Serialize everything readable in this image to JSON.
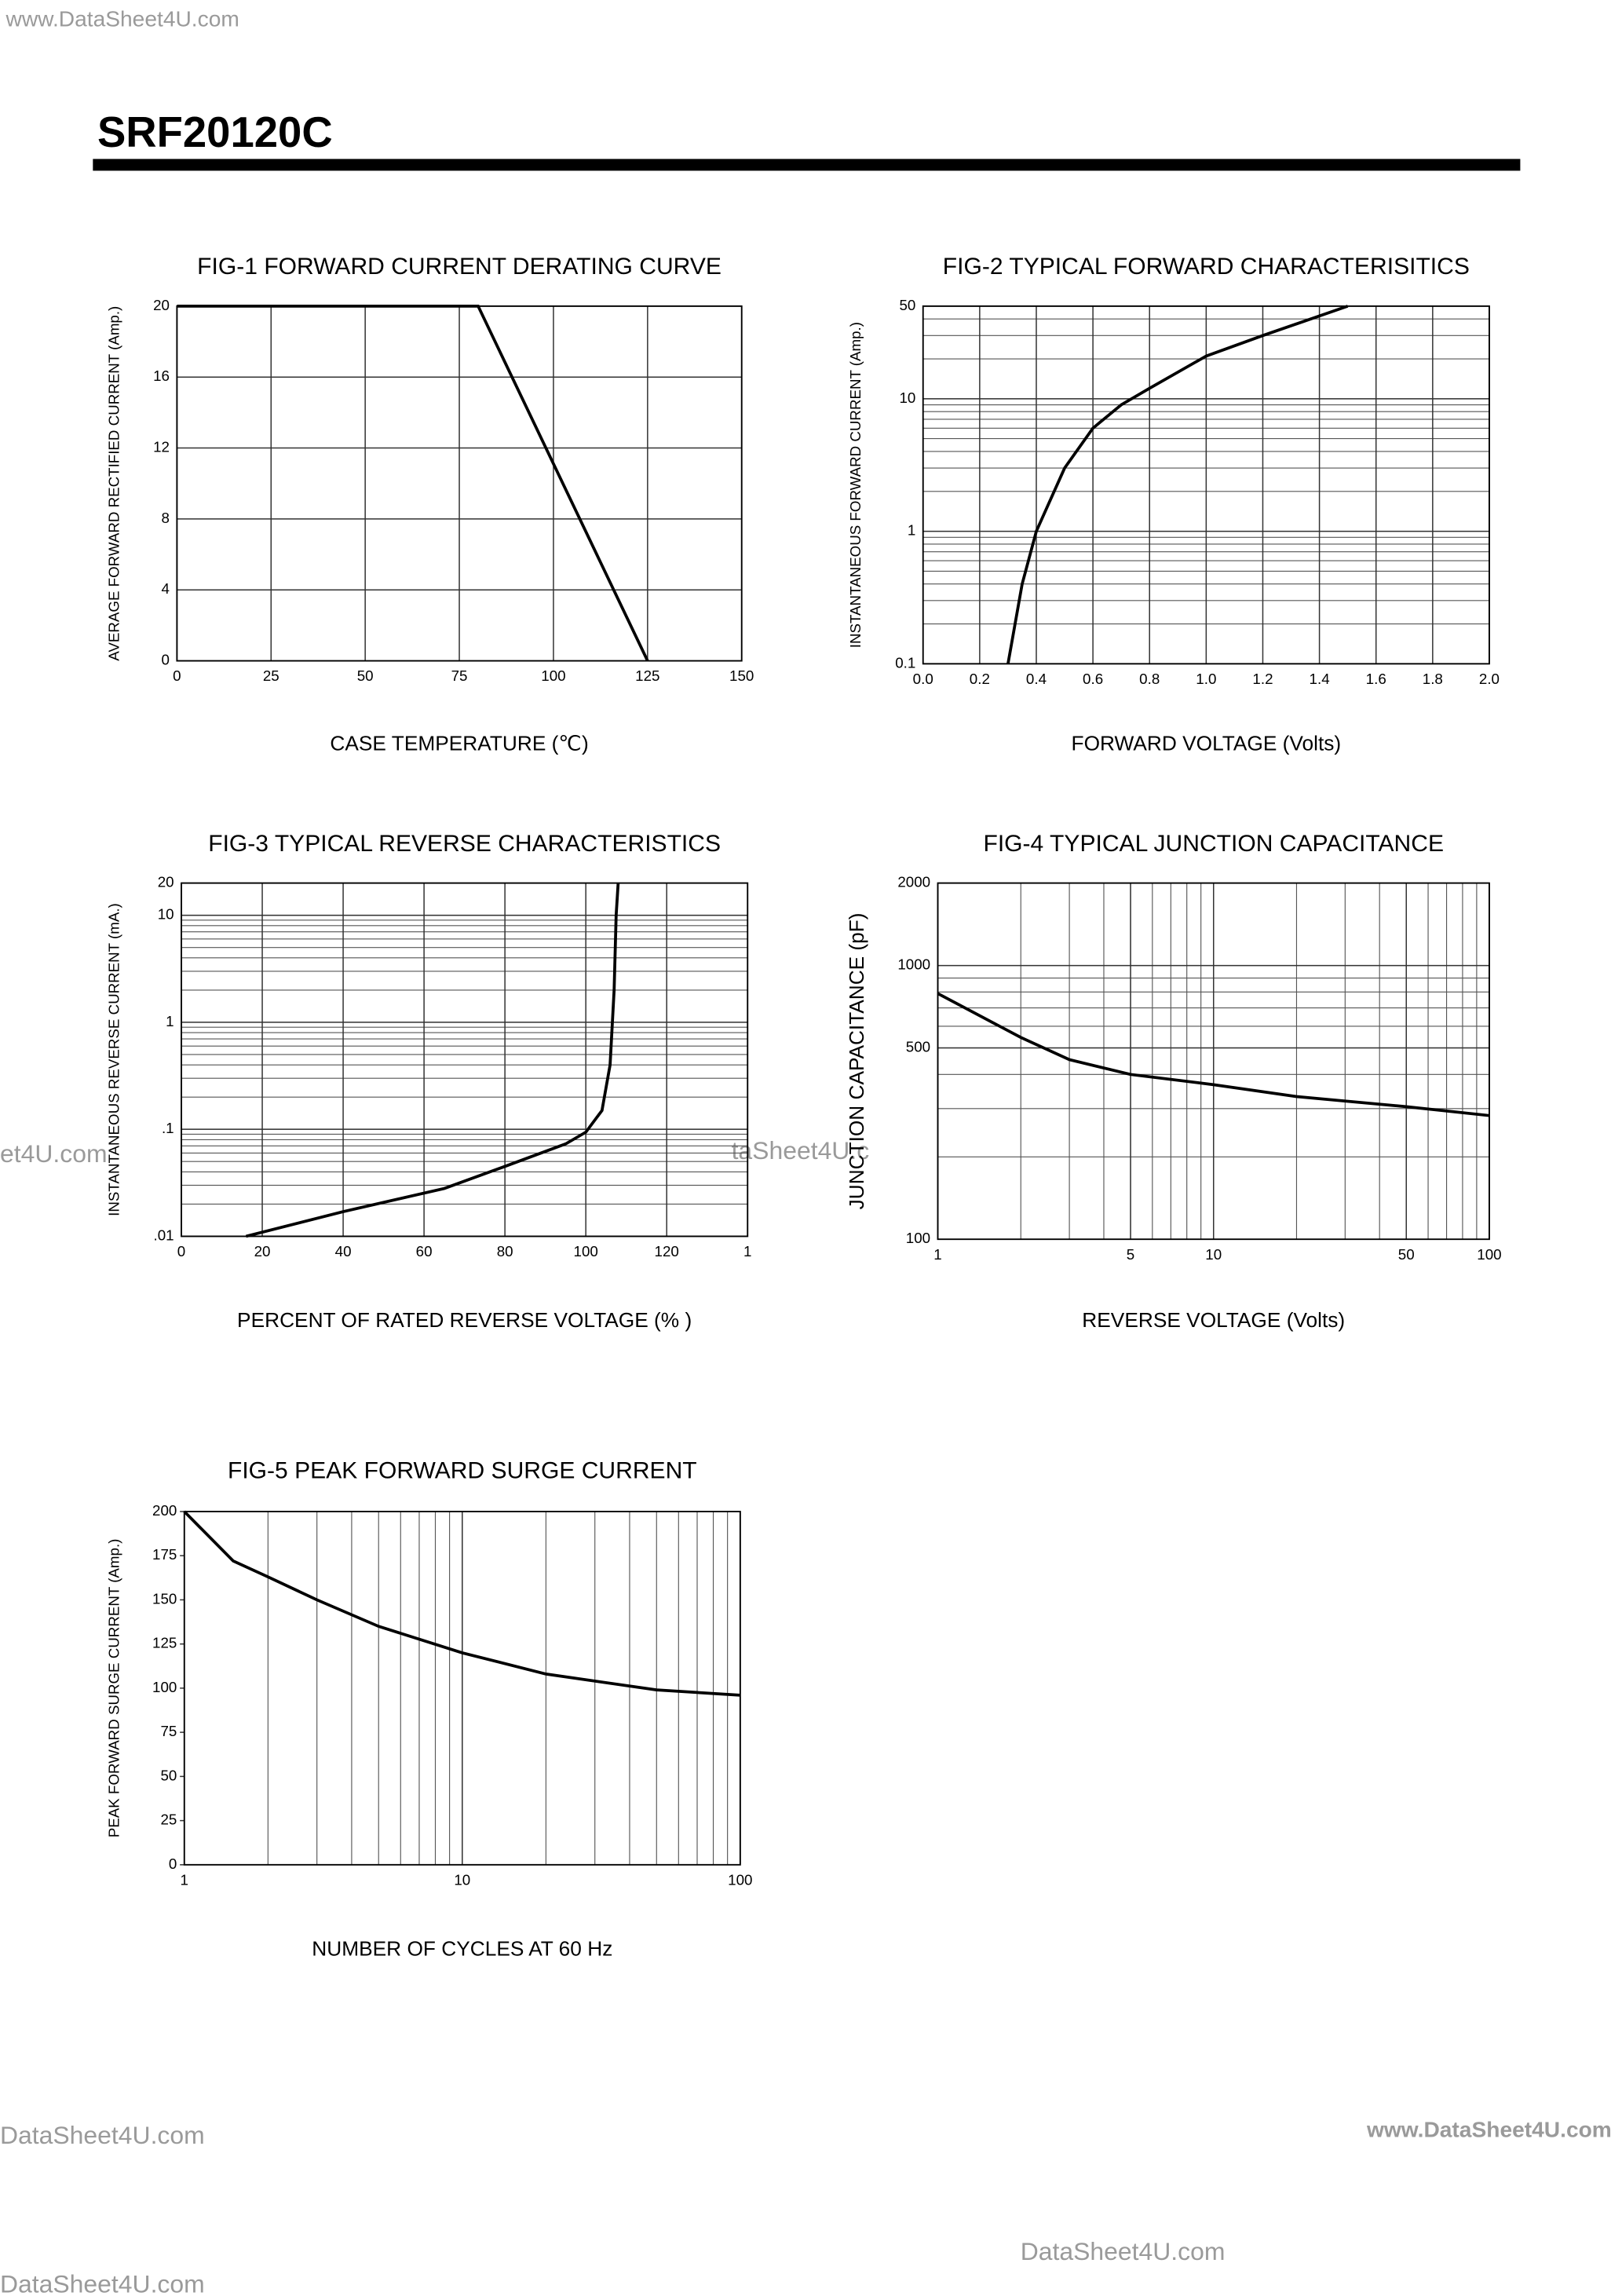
{
  "header": {
    "url": "www.DataSheet4U.com",
    "title": "SRF20120C"
  },
  "watermarks": [
    "et4U.com",
    "taSheet4U.c"
  ],
  "footer": {
    "left": "DataSheet4U.com",
    "right": "www.DataSheet4U.com",
    "center": "DataSheet4U.com",
    "bottom": "DataSheet4U.com"
  },
  "chart_data": [
    {
      "type": "line",
      "title": "FIG-1 FORWARD CURRENT DERATING CURVE",
      "x_label": "CASE TEMPERATURE (℃)",
      "y_label": "AVERAGE FORWARD RECTIFIED CURRENT (Amp.)",
      "x": [
        0,
        80,
        125
      ],
      "values": [
        20,
        20,
        0
      ],
      "color": "#000000",
      "xlim": [
        0,
        150
      ],
      "xticks": [
        0,
        25,
        50,
        75,
        100,
        125,
        150
      ],
      "ylim": [
        0,
        20
      ],
      "yticks": [
        0,
        4,
        8,
        12,
        16,
        20
      ],
      "grid": "both"
    },
    {
      "type": "line",
      "title": "FIG-2 TYPICAL FORWARD CHARACTERISITICS",
      "x_label": "FORWARD VOLTAGE (Volts)",
      "y_label": "INSTANTANEOUS FORWARD CURRENT (Amp.)",
      "x": [
        0.3,
        0.35,
        0.4,
        0.5,
        0.6,
        0.7,
        0.8,
        1.0,
        1.2,
        1.5
      ],
      "values": [
        0.1,
        0.4,
        1,
        3,
        6,
        9,
        12,
        21,
        30,
        50
      ],
      "color": "#000000",
      "xlim": [
        0,
        2
      ],
      "xticks": [
        {
          "value": 0,
          "label": "0.0"
        },
        0.2,
        0.4,
        0.6,
        0.8,
        {
          "value": 1,
          "label": "1.0"
        },
        1.2,
        1.4,
        1.6,
        1.8,
        {
          "value": 2,
          "label": "2.0"
        }
      ],
      "ylim": [
        0.1,
        50
      ],
      "yticks": [
        0.1,
        1,
        10,
        50
      ],
      "y_log": true,
      "grid": "both"
    },
    {
      "type": "line",
      "title": "FIG-3 TYPICAL REVERSE CHARACTERISTICS",
      "x_label": "PERCENT OF RATED REVERSE VOLTAGE (%  )",
      "y_label": "INSTANTANEOUS REVERSE CURRENT (mA.)",
      "x": [
        16,
        40,
        65,
        80,
        95,
        100,
        104,
        106,
        107,
        107.5,
        108
      ],
      "values": [
        0.01,
        0.017,
        0.028,
        0.045,
        0.073,
        0.094,
        0.15,
        0.4,
        2,
        10,
        20
      ],
      "color": "#000000",
      "xlim": [
        0,
        140
      ],
      "xticks": [
        0,
        20,
        40,
        60,
        80,
        100,
        120,
        {
          "value": 140,
          "label": "1"
        }
      ],
      "ylim": [
        0.01,
        20
      ],
      "yticks": [
        {
          "value": 0.01,
          "label": ".01"
        },
        {
          "value": 0.1,
          "label": ".1"
        },
        1,
        10,
        20
      ],
      "y_log": true,
      "grid": "both"
    },
    {
      "type": "line",
      "title": "FIG-4 TYPICAL JUNCTION CAPACITANCE",
      "x_label": "REVERSE VOLTAGE (Volts)",
      "y_label": "JUNCTION CAPACITANCE (pF)",
      "x": [
        1,
        2,
        3,
        5,
        10,
        20,
        50,
        100
      ],
      "values": [
        790,
        546,
        453,
        400,
        367,
        332,
        305,
        283
      ],
      "color": "#000000",
      "xlim": [
        1,
        100
      ],
      "xticks": [
        1,
        5,
        10,
        50,
        100
      ],
      "x_log": true,
      "ylim": [
        100,
        2000
      ],
      "yticks": [
        100,
        500,
        1000,
        2000
      ],
      "y_log": true,
      "grid": "both"
    },
    {
      "type": "line",
      "title": "FIG-5 PEAK FORWARD SURGE CURRENT",
      "x_label": "NUMBER OF CYCLES AT 60 Hz",
      "y_label": "PEAK FORWARD SURGE   CURRENT (Amp.)",
      "x": [
        1,
        1.5,
        2,
        3,
        5,
        10,
        20,
        50,
        100
      ],
      "values": [
        200,
        172,
        163,
        150,
        135,
        120,
        108,
        99,
        96
      ],
      "color": "#000000",
      "xlim": [
        1,
        100
      ],
      "xticks": [
        1,
        10,
        100
      ],
      "x_log": true,
      "ylim": [
        0,
        200
      ],
      "yticks": [
        0,
        25,
        50,
        75,
        100,
        125,
        150,
        175,
        200
      ],
      "grid": "x"
    }
  ]
}
